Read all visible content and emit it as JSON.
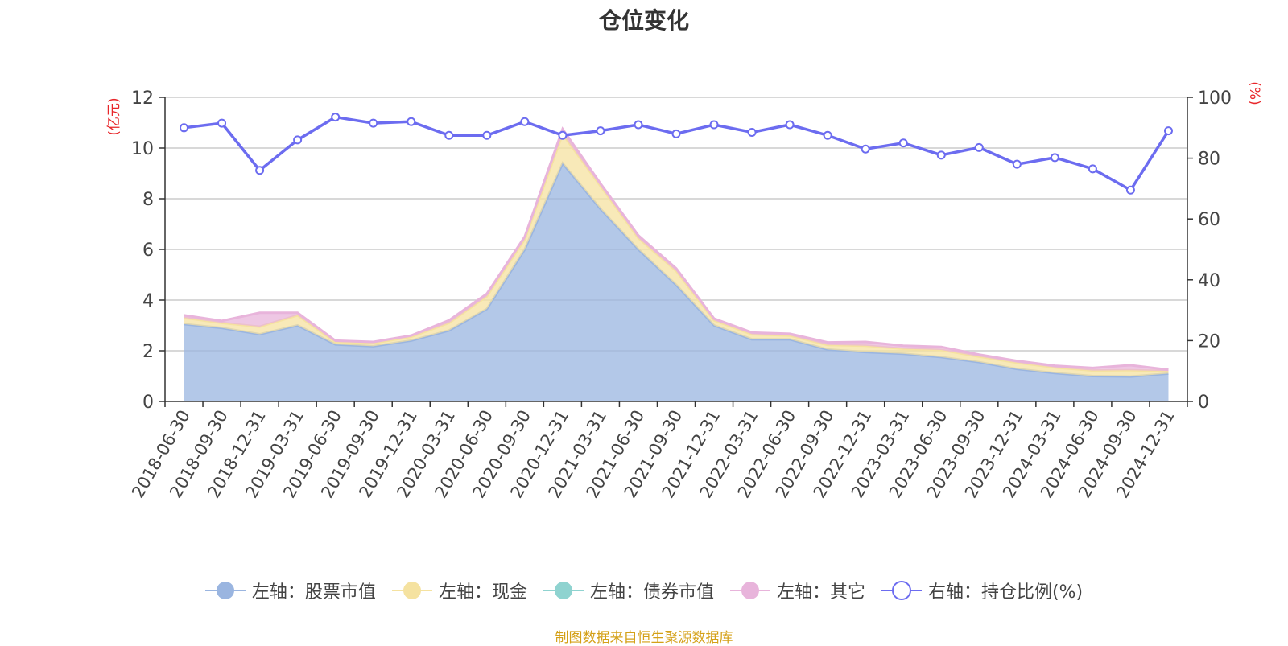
{
  "chart_data": {
    "type": "area",
    "title": "仓位变化",
    "y_left_unit": "(亿元)",
    "y_right_unit": "(%)",
    "y_left_ticks": [
      "0",
      "2",
      "4",
      "6",
      "8",
      "10",
      "12"
    ],
    "y_right_ticks": [
      "0",
      "20",
      "40",
      "60",
      "80",
      "100"
    ],
    "y_left_range": [
      0,
      12
    ],
    "y_right_range": [
      0,
      100
    ],
    "grid": true,
    "legend_position": "bottom",
    "categories": [
      "2018-06-30",
      "2018-09-30",
      "2018-12-31",
      "2019-03-31",
      "2019-06-30",
      "2019-09-30",
      "2019-12-31",
      "2020-03-31",
      "2020-06-30",
      "2020-09-30",
      "2020-12-31",
      "2021-03-31",
      "2021-06-30",
      "2021-09-30",
      "2021-12-31",
      "2022-03-31",
      "2022-06-30",
      "2022-09-30",
      "2022-12-31",
      "2023-03-31",
      "2023-06-30",
      "2023-09-30",
      "2023-12-31",
      "2024-03-31",
      "2024-06-30",
      "2024-09-30",
      "2024-12-31"
    ],
    "series": [
      {
        "name": "左轴：股票市值",
        "axis": "left",
        "stack": true,
        "color": "#9ab5e0",
        "values": [
          3.05,
          2.9,
          2.65,
          3.0,
          2.25,
          2.18,
          2.4,
          2.8,
          3.65,
          6.0,
          9.4,
          7.6,
          6.0,
          4.6,
          3.0,
          2.45,
          2.45,
          2.05,
          1.95,
          1.88,
          1.75,
          1.55,
          1.28,
          1.12,
          1.0,
          0.98,
          1.1
        ]
      },
      {
        "name": "左轴：现金",
        "axis": "left",
        "stack": true,
        "color": "#f5e2a0",
        "values": [
          0.25,
          0.2,
          0.3,
          0.4,
          0.1,
          0.12,
          0.15,
          0.3,
          0.5,
          0.4,
          1.15,
          0.9,
          0.45,
          0.55,
          0.2,
          0.2,
          0.15,
          0.18,
          0.25,
          0.2,
          0.28,
          0.22,
          0.25,
          0.22,
          0.22,
          0.25,
          0.1
        ]
      },
      {
        "name": "左轴：债券市值",
        "axis": "left",
        "stack": true,
        "color": "#8fd3d0",
        "values": [
          0,
          0,
          0,
          0,
          0,
          0,
          0,
          0,
          0,
          0,
          0,
          0,
          0,
          0,
          0,
          0,
          0,
          0,
          0,
          0,
          0,
          0,
          0,
          0,
          0,
          0,
          0
        ]
      },
      {
        "name": "左轴：其它",
        "axis": "left",
        "stack": true,
        "color": "#e8b4db",
        "values": [
          0.1,
          0.08,
          0.55,
          0.1,
          0.05,
          0.05,
          0.05,
          0.1,
          0.1,
          0.1,
          0.2,
          0.1,
          0.1,
          0.1,
          0.07,
          0.07,
          0.07,
          0.1,
          0.15,
          0.12,
          0.12,
          0.08,
          0.07,
          0.07,
          0.1,
          0.2,
          0.05
        ]
      },
      {
        "name": "右轴：持仓比例(%)",
        "axis": "right",
        "type": "line",
        "color": "#6c6cf0",
        "values": [
          90,
          91.5,
          76,
          86,
          93.5,
          91.5,
          92,
          87.5,
          87.5,
          92,
          87.5,
          89,
          91,
          88,
          91,
          88.5,
          91,
          87.5,
          83,
          85,
          81,
          83.5,
          78,
          80.2,
          76.5,
          69.5,
          89
        ]
      }
    ]
  },
  "legend": {
    "items": [
      {
        "label": "左轴：股票市值",
        "color": "#9ab5e0",
        "icon": "filled-circle"
      },
      {
        "label": "左轴：现金",
        "color": "#f5e2a0",
        "icon": "filled-circle"
      },
      {
        "label": "左轴：债券市值",
        "color": "#8fd3d0",
        "icon": "filled-circle"
      },
      {
        "label": "左轴：其它",
        "color": "#e8b4db",
        "icon": "filled-circle"
      },
      {
        "label": "右轴：持仓比例(%)",
        "color": "#6c6cf0",
        "icon": "hollow-circle"
      }
    ]
  },
  "source_note": "制图数据来自恒生聚源数据库"
}
